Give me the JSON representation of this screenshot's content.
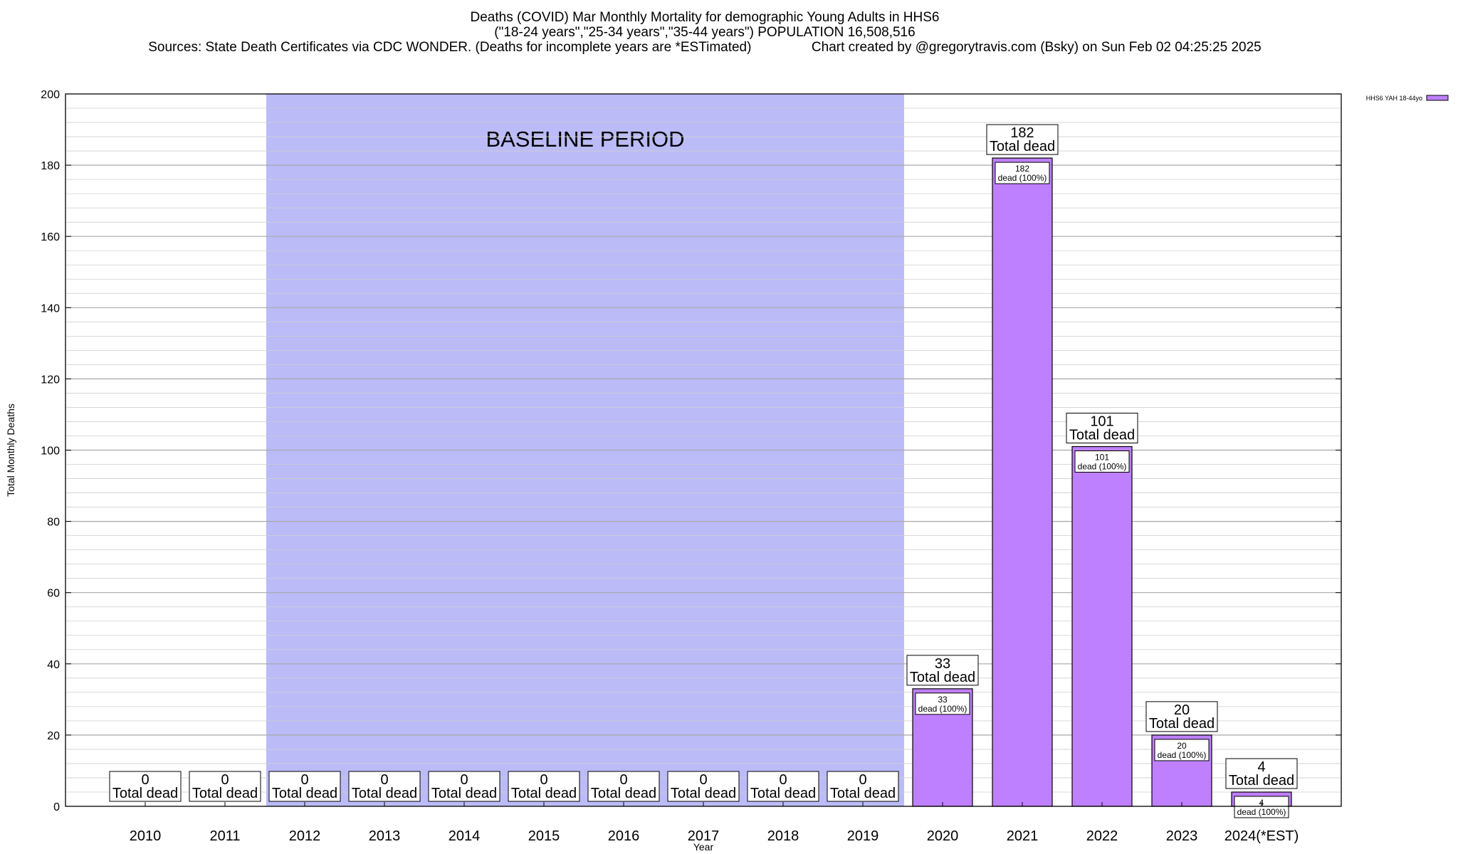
{
  "chart_data": {
    "type": "bar",
    "title_lines": [
      "Deaths (COVID) Mar Monthly Mortality for demographic Young Adults in HHS6",
      "(\"18-24 years\",\"25-34 years\",\"35-44 years\") POPULATION 16,508,516",
      "Sources: State Death Certificates via CDC WONDER. (Deaths for incomplete years are *ESTimated)                Chart created by @gregorytravis.com (Bsky) on Sun Feb 02 04:25:25 2025"
    ],
    "xlabel": "Year",
    "ylabel": "Total Monthly Deaths",
    "ylim": [
      0,
      200
    ],
    "yticks": [
      0,
      20,
      40,
      60,
      80,
      100,
      120,
      140,
      160,
      180,
      200
    ],
    "categories": [
      "2010",
      "2011",
      "2012",
      "2013",
      "2014",
      "2015",
      "2016",
      "2017",
      "2018",
      "2019",
      "2020",
      "2021",
      "2022",
      "2023",
      "2024(*EST)"
    ],
    "series": [
      {
        "name": "HHS6 YAH 18-44yo",
        "color": "#bf80ff",
        "values": [
          0,
          0,
          0,
          0,
          0,
          0,
          0,
          0,
          0,
          0,
          33,
          182,
          101,
          20,
          4
        ]
      }
    ],
    "total_label": "Total dead",
    "inner_label": "dead (100%)",
    "baseline": {
      "label": "BASELINE PERIOD",
      "from": "2012",
      "to": "2019",
      "color": "#bbbbf8"
    },
    "grid": true,
    "legend_position": "top-right"
  }
}
